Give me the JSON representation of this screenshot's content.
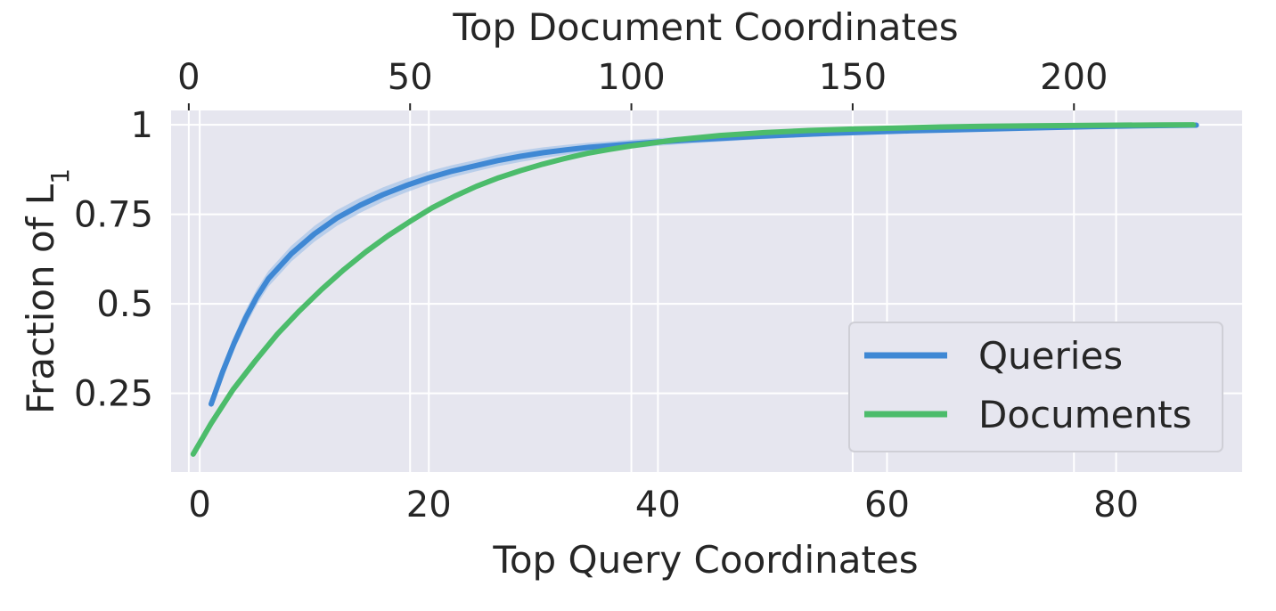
{
  "chart_data": {
    "type": "line",
    "title": "",
    "xlabel": "Top Query Coordinates",
    "ylabel": "Fraction of L",
    "ylabel_sub": "1",
    "x2label": "Top Document Coordinates",
    "xlim": [
      -2.5,
      91
    ],
    "x2lim": [
      -4,
      238
    ],
    "ylim": [
      0.03,
      1.04
    ],
    "xticks": [
      0,
      20,
      40,
      60,
      80
    ],
    "xtick_labels": [
      "0",
      "20",
      "40",
      "60",
      "80"
    ],
    "x2ticks": [
      0,
      50,
      100,
      150,
      200
    ],
    "x2tick_labels": [
      "0",
      "50",
      "100",
      "150",
      "200"
    ],
    "yticks": [
      0.25,
      0.5,
      0.75,
      1.0
    ],
    "ytick_labels": [
      "0.25",
      "0.5",
      "0.75",
      "1"
    ],
    "grid": true,
    "legend_position": "lower-right",
    "series": [
      {
        "name": "Queries",
        "axis": "bottom",
        "color": "#3f88d4",
        "band_color": "#a9c6e8",
        "x": [
          1,
          2,
          3,
          4,
          5,
          6,
          8,
          10,
          12,
          14,
          16,
          18,
          20,
          22,
          24,
          26,
          28,
          30,
          32,
          34,
          36,
          38,
          40,
          43,
          46,
          49,
          52,
          55,
          58,
          62,
          66,
          70,
          74,
          78,
          82,
          87
        ],
        "values": [
          0.22,
          0.31,
          0.39,
          0.46,
          0.52,
          0.57,
          0.64,
          0.695,
          0.74,
          0.775,
          0.805,
          0.83,
          0.852,
          0.87,
          0.885,
          0.9,
          0.912,
          0.922,
          0.93,
          0.937,
          0.942,
          0.947,
          0.952,
          0.958,
          0.963,
          0.968,
          0.972,
          0.976,
          0.979,
          0.983,
          0.986,
          0.989,
          0.992,
          0.995,
          0.997,
          0.999
        ],
        "ci_width": [
          0.01,
          0.015,
          0.02,
          0.022,
          0.022,
          0.022,
          0.022,
          0.022,
          0.022,
          0.021,
          0.02,
          0.019,
          0.018,
          0.017,
          0.016,
          0.016,
          0.016,
          0.015,
          0.014,
          0.013,
          0.012,
          0.012,
          0.011,
          0.01,
          0.009,
          0.008,
          0.008,
          0.007,
          0.006,
          0.005,
          0.004,
          0.003,
          0.003,
          0.002,
          0.001,
          0.001
        ]
      },
      {
        "name": "Documents",
        "axis": "top",
        "color": "#4cbc6b",
        "x": [
          1,
          5,
          10,
          15,
          20,
          25,
          30,
          35,
          40,
          45,
          50,
          55,
          60,
          65,
          70,
          75,
          80,
          85,
          90,
          95,
          100,
          110,
          120,
          130,
          140,
          150,
          160,
          170,
          180,
          190,
          200,
          210,
          220,
          227
        ],
        "values": [
          0.08,
          0.165,
          0.26,
          0.34,
          0.415,
          0.48,
          0.54,
          0.595,
          0.645,
          0.69,
          0.73,
          0.768,
          0.8,
          0.828,
          0.852,
          0.872,
          0.89,
          0.906,
          0.92,
          0.931,
          0.941,
          0.958,
          0.97,
          0.978,
          0.984,
          0.988,
          0.991,
          0.994,
          0.996,
          0.997,
          0.998,
          0.999,
          0.9995,
          1.0
        ]
      }
    ]
  }
}
